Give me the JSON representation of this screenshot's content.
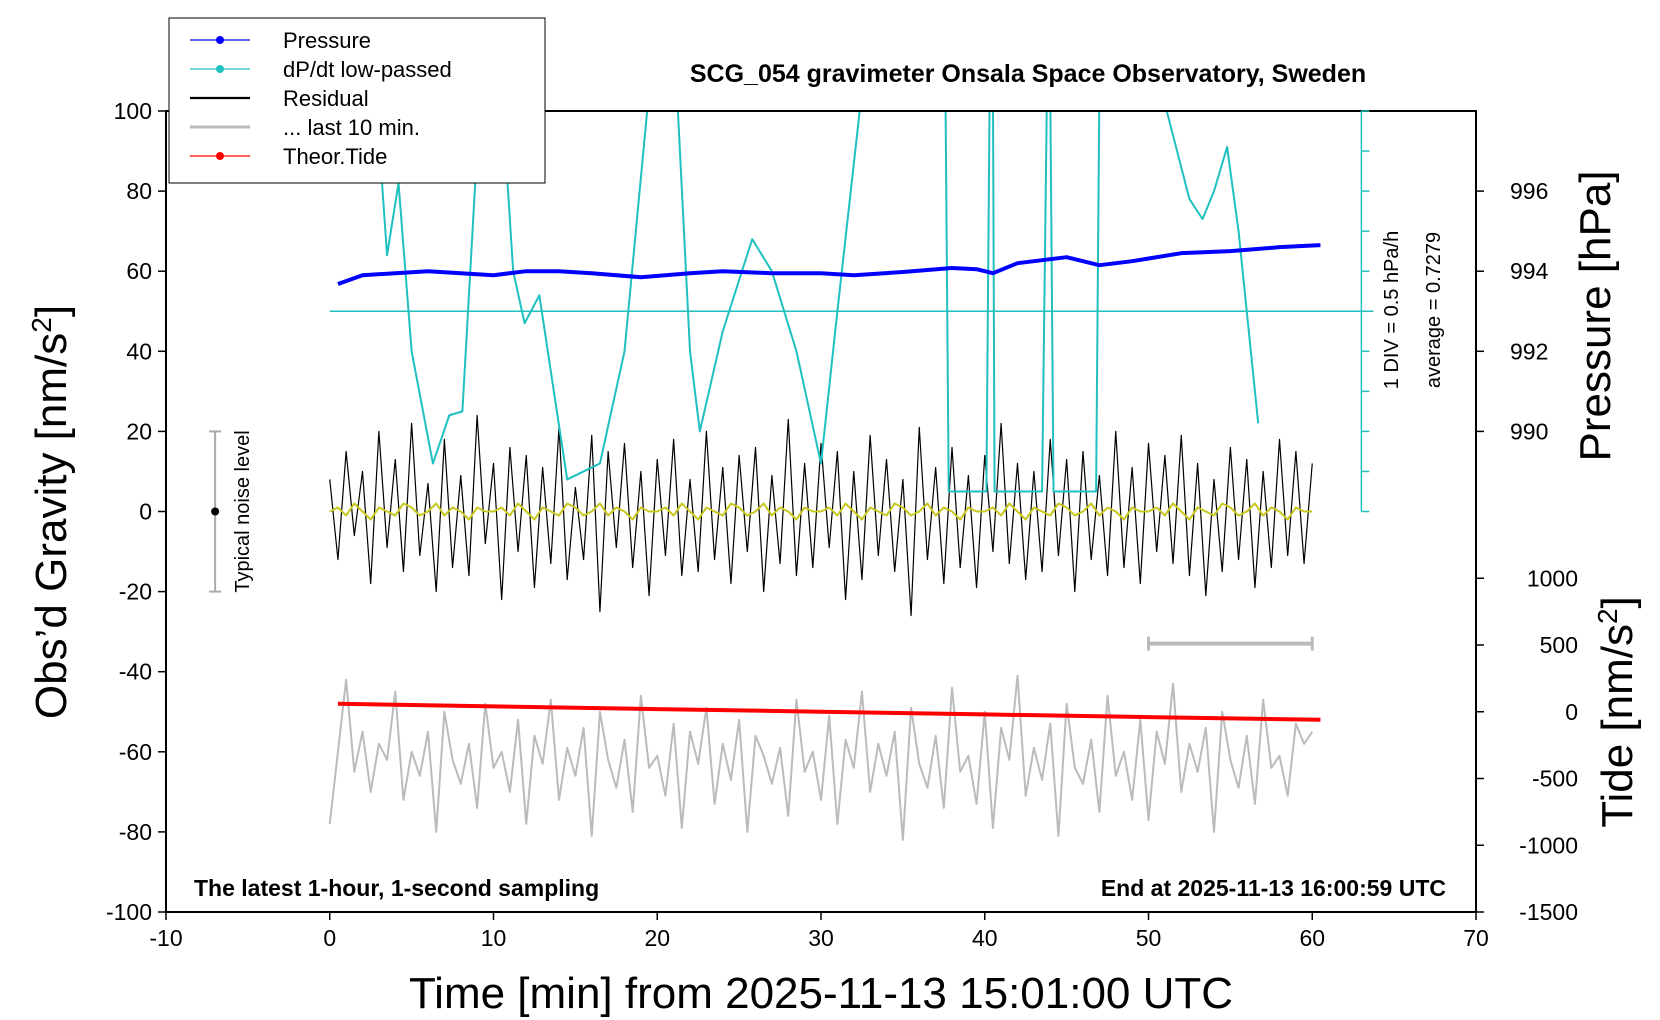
{
  "chart_data": {
    "type": "line",
    "title": "SCG_054 gravimeter Onsala Space Observatory, Sweden",
    "xlabel": "Time [min] from 2025-11-13 15:01:00 UTC",
    "ylabel": [
      "Obs’d Gravity [nm/s",
      "2",
      "]"
    ],
    "y2label": "Pressure [hPa]",
    "y3label": [
      "Tide [nm/s",
      "2",
      "]"
    ],
    "annotations": {
      "bottom_left": "The latest 1-hour, 1-second sampling",
      "bottom_right": "End at 2025-11-13 16:00:59 UTC",
      "div": "1 DIV = 0.5 hPa/h",
      "average": "average = 0.7279"
    },
    "xlim": [
      -10,
      70
    ],
    "xticks": [
      -10,
      0,
      10,
      20,
      30,
      40,
      50,
      60,
      70
    ],
    "ylim": [
      -100,
      100
    ],
    "yticks": [
      -100,
      -80,
      -60,
      -40,
      -20,
      0,
      20,
      40,
      60,
      80,
      100
    ],
    "y2lim": [
      978,
      998
    ],
    "y2ticks": [
      990,
      992,
      994,
      996
    ],
    "y3lim": [
      -1500,
      4500
    ],
    "y3ticks": [
      -1500,
      -1000,
      -500,
      0,
      500,
      1000
    ],
    "noise_level": {
      "label": "Typical noise level",
      "x": -7,
      "range": [
        -20,
        20
      ],
      "center": 0
    },
    "dpdt_axis": {
      "x": 63,
      "ticks": [
        0,
        10,
        20,
        30,
        40,
        50,
        60,
        70,
        80,
        90,
        100
      ],
      "average_line": 50
    },
    "window": {
      "x": [
        50,
        60
      ],
      "y": -33
    },
    "series": [
      {
        "name": "Pressure",
        "color": "#0000ff",
        "axis": "y2",
        "marker": true,
        "width": 4,
        "x": [
          0.5,
          2,
          4,
          6,
          8,
          10,
          12,
          14,
          16,
          19,
          22,
          24,
          27,
          30,
          32,
          35,
          38,
          39.5,
          40.5,
          42,
          45,
          47,
          49,
          52,
          55,
          58,
          60.5
        ],
        "values": [
          993.68,
          993.9,
          993.95,
          994.0,
          993.95,
          993.9,
          994.0,
          994.0,
          993.95,
          993.85,
          993.95,
          994.0,
          993.95,
          993.95,
          993.9,
          993.98,
          994.08,
          994.05,
          993.95,
          994.2,
          994.35,
          994.15,
          994.25,
          994.45,
          994.5,
          994.6,
          994.65
        ]
      },
      {
        "name": "dP/dt low-passed",
        "color": "#20c0c0",
        "axis": "y",
        "marker": true,
        "width": 2,
        "x": [
          2.8,
          3.5,
          4.2,
          5,
          6.3,
          7.3,
          8.1,
          9.2,
          10.5,
          11.2,
          11.9,
          12.8,
          13.5,
          14.5,
          16.5,
          18,
          19.5,
          21.2,
          22,
          22.6,
          24,
          25.8,
          27,
          28.5,
          30,
          31,
          32.5,
          37.6,
          37.8,
          40.1,
          40.3,
          40.5,
          40.6,
          43.5,
          43.8,
          44,
          44.2,
          46.8,
          47,
          50.8,
          52.5,
          53.3,
          54,
          54.8,
          55.5,
          56.7
        ],
        "values": [
          105,
          64,
          82,
          40,
          12,
          24,
          25,
          105,
          105,
          60,
          47,
          54,
          35,
          8,
          12,
          40,
          105,
          105,
          40,
          20,
          45,
          68,
          60,
          40,
          12,
          50,
          105,
          105,
          5,
          5,
          105,
          105,
          5,
          5,
          105,
          105,
          5,
          5,
          105,
          105,
          78,
          73,
          80,
          91,
          70,
          22
        ]
      },
      {
        "name": "Residual",
        "color": "#000000",
        "axis": "y",
        "marker": false,
        "width": 1.2,
        "x": [
          0,
          0.5,
          1,
          1.5,
          2,
          2.5,
          3,
          3.5,
          4,
          4.5,
          5,
          5.5,
          6,
          6.5,
          7,
          7.5,
          8,
          8.5,
          9,
          9.5,
          10,
          10.5,
          11,
          11.5,
          12,
          12.5,
          13,
          13.5,
          14,
          14.5,
          15,
          15.5,
          16,
          16.5,
          17,
          17.5,
          18,
          18.5,
          19,
          19.5,
          20,
          20.5,
          21,
          21.5,
          22,
          22.5,
          23,
          23.5,
          24,
          24.5,
          25,
          25.5,
          26,
          26.5,
          27,
          27.5,
          28,
          28.5,
          29,
          29.5,
          30,
          30.5,
          31,
          31.5,
          32,
          32.5,
          33,
          33.5,
          34,
          34.5,
          35,
          35.5,
          36,
          36.5,
          37,
          37.5,
          38,
          38.5,
          39,
          39.5,
          40,
          40.5,
          41,
          41.5,
          42,
          42.5,
          43,
          43.5,
          44,
          44.5,
          45,
          45.5,
          46,
          46.5,
          47,
          47.5,
          48,
          48.5,
          49,
          49.5,
          50,
          50.5,
          51,
          51.5,
          52,
          52.5,
          53,
          53.5,
          54,
          54.5,
          55,
          55.5,
          56,
          56.5,
          57,
          57.5,
          58,
          58.5,
          59,
          59.5,
          60
        ],
        "values": [
          8,
          -12,
          15,
          -6,
          10,
          -18,
          20,
          -9,
          13,
          -15,
          22,
          -11,
          7,
          -20,
          18,
          -14,
          9,
          -16,
          24,
          -8,
          12,
          -22,
          16,
          -10,
          14,
          -19,
          11,
          -13,
          21,
          -17,
          6,
          -12,
          19,
          -25,
          15,
          -9,
          17,
          -14,
          10,
          -21,
          13,
          -11,
          18,
          -16,
          8,
          -15,
          20,
          -12,
          11,
          -18,
          14,
          -10,
          16,
          -20,
          9,
          -13,
          23,
          -16,
          12,
          -14,
          17,
          -9,
          15,
          -22,
          10,
          -17,
          19,
          -11,
          13,
          -15,
          8,
          -26,
          21,
          -12,
          11,
          -18,
          16,
          -14,
          9,
          -19,
          14,
          -10,
          22,
          -13,
          12,
          -17,
          10,
          -15,
          18,
          -11,
          13,
          -20,
          15,
          -12,
          9,
          -16,
          20,
          -14,
          11,
          -18,
          17,
          -10,
          14,
          -13,
          19,
          -16,
          12,
          -21,
          8,
          -15,
          16,
          -12,
          13,
          -19,
          10,
          -14,
          18,
          -11,
          15,
          -13,
          12
        ]
      },
      {
        "color": "#c8c820",
        "axis": "y",
        "marker": false,
        "width": 2,
        "x": [
          0,
          0.5,
          1,
          1.5,
          2,
          2.5,
          3,
          3.5,
          4,
          4.5,
          5,
          5.5,
          6,
          6.5,
          7,
          7.5,
          8,
          8.5,
          9,
          9.5,
          10,
          10.5,
          11,
          11.5,
          12,
          12.5,
          13,
          13.5,
          14,
          14.5,
          15,
          15.5,
          16,
          16.5,
          17,
          17.5,
          18,
          18.5,
          19,
          19.5,
          20,
          20.5,
          21,
          21.5,
          22,
          22.5,
          23,
          23.5,
          24,
          24.5,
          25,
          25.5,
          26,
          26.5,
          27,
          27.5,
          28,
          28.5,
          29,
          29.5,
          30,
          30.5,
          31,
          31.5,
          32,
          32.5,
          33,
          33.5,
          34,
          34.5,
          35,
          35.5,
          36,
          36.5,
          37,
          37.5,
          38,
          38.5,
          39,
          39.5,
          40,
          40.5,
          41,
          41.5,
          42,
          42.5,
          43,
          43.5,
          44,
          44.5,
          45,
          45.5,
          46,
          46.5,
          47,
          47.5,
          48,
          48.5,
          49,
          49.5,
          50,
          50.5,
          51,
          51.5,
          52,
          52.5,
          53,
          53.5,
          54,
          54.5,
          55,
          55.5,
          56,
          56.5,
          57,
          57.5,
          58,
          58.5,
          59,
          59.5,
          60
        ],
        "values": [
          0,
          1,
          -1,
          2,
          0,
          -2,
          1,
          0,
          -1,
          2,
          1,
          -1,
          0,
          2,
          -1,
          1,
          0,
          -2,
          1,
          0,
          0,
          1,
          -1,
          2,
          0,
          -2,
          1,
          0,
          -1,
          2,
          1,
          -1,
          0,
          2,
          -1,
          1,
          0,
          -2,
          1,
          0,
          0,
          1,
          -1,
          2,
          0,
          -2,
          1,
          0,
          -1,
          2,
          1,
          -1,
          0,
          2,
          -1,
          1,
          0,
          -2,
          1,
          0,
          0,
          1,
          -1,
          2,
          0,
          -2,
          1,
          0,
          -1,
          2,
          1,
          -1,
          0,
          2,
          -1,
          1,
          0,
          -2,
          1,
          0,
          0,
          1,
          -1,
          2,
          0,
          -2,
          1,
          0,
          -1,
          2,
          1,
          -1,
          0,
          2,
          -1,
          1,
          0,
          -2,
          1,
          0,
          0,
          1,
          -1,
          2,
          0,
          -2,
          1,
          0,
          -1,
          2,
          1,
          -1,
          0,
          2,
          -1,
          1,
          0,
          -2,
          1,
          0,
          0
        ]
      },
      {
        "name": "... last 10 min.",
        "color": "#bbbbbb",
        "axis": "y",
        "marker": false,
        "width": 2,
        "x": [
          0,
          0.5,
          1,
          1.5,
          2,
          2.5,
          3,
          3.5,
          4,
          4.5,
          5,
          5.5,
          6,
          6.5,
          7,
          7.5,
          8,
          8.5,
          9,
          9.5,
          10,
          10.5,
          11,
          11.5,
          12,
          12.5,
          13,
          13.5,
          14,
          14.5,
          15,
          15.5,
          16,
          16.5,
          17,
          17.5,
          18,
          18.5,
          19,
          19.5,
          20,
          20.5,
          21,
          21.5,
          22,
          22.5,
          23,
          23.5,
          24,
          24.5,
          25,
          25.5,
          26,
          26.5,
          27,
          27.5,
          28,
          28.5,
          29,
          29.5,
          30,
          30.5,
          31,
          31.5,
          32,
          32.5,
          33,
          33.5,
          34,
          34.5,
          35,
          35.5,
          36,
          36.5,
          37,
          37.5,
          38,
          38.5,
          39,
          39.5,
          40,
          40.5,
          41,
          41.5,
          42,
          42.5,
          43,
          43.5,
          44,
          44.5,
          45,
          45.5,
          46,
          46.5,
          47,
          47.5,
          48,
          48.5,
          49,
          49.5,
          50,
          50.5,
          51,
          51.5,
          52,
          52.5,
          53,
          53.5,
          54,
          54.5,
          55,
          55.5,
          56,
          56.5,
          57,
          57.5,
          58,
          58.5,
          59,
          59.5,
          60
        ],
        "values": [
          -78,
          -60,
          -42,
          -65,
          -55,
          -70,
          -58,
          -62,
          -45,
          -72,
          -60,
          -66,
          -55,
          -80,
          -50,
          -62,
          -68,
          -58,
          -74,
          -48,
          -64,
          -60,
          -70,
          -52,
          -78,
          -56,
          -63,
          -47,
          -72,
          -59,
          -66,
          -54,
          -81,
          -50,
          -62,
          -69,
          -57,
          -75,
          -46,
          -64,
          -61,
          -71,
          -53,
          -79,
          -55,
          -63,
          -49,
          -73,
          -58,
          -67,
          -52,
          -80,
          -56,
          -61,
          -68,
          -59,
          -76,
          -47,
          -65,
          -60,
          -72,
          -51,
          -78,
          -57,
          -64,
          -45,
          -70,
          -58,
          -66,
          -55,
          -82,
          -49,
          -63,
          -69,
          -56,
          -74,
          -44,
          -65,
          -61,
          -73,
          -50,
          -79,
          -54,
          -62,
          -41,
          -71,
          -59,
          -67,
          -53,
          -81,
          -48,
          -64,
          -68,
          -57,
          -75,
          -46,
          -66,
          -60,
          -72,
          -52,
          -77,
          -55,
          -63,
          -43,
          -70,
          -58,
          -65,
          -54,
          -80,
          -50,
          -62,
          -69,
          -56,
          -73,
          -47,
          -64,
          -61,
          -71,
          -53,
          -58,
          -55
        ]
      },
      {
        "name": "Theor.Tide",
        "color": "#ff0000",
        "axis": "y3",
        "marker": true,
        "width": 4,
        "x": [
          0.5,
          10,
          20,
          30,
          40,
          50,
          60.5
        ],
        "values": [
          60,
          40,
          20,
          0,
          -20,
          -40,
          -60
        ]
      }
    ]
  }
}
